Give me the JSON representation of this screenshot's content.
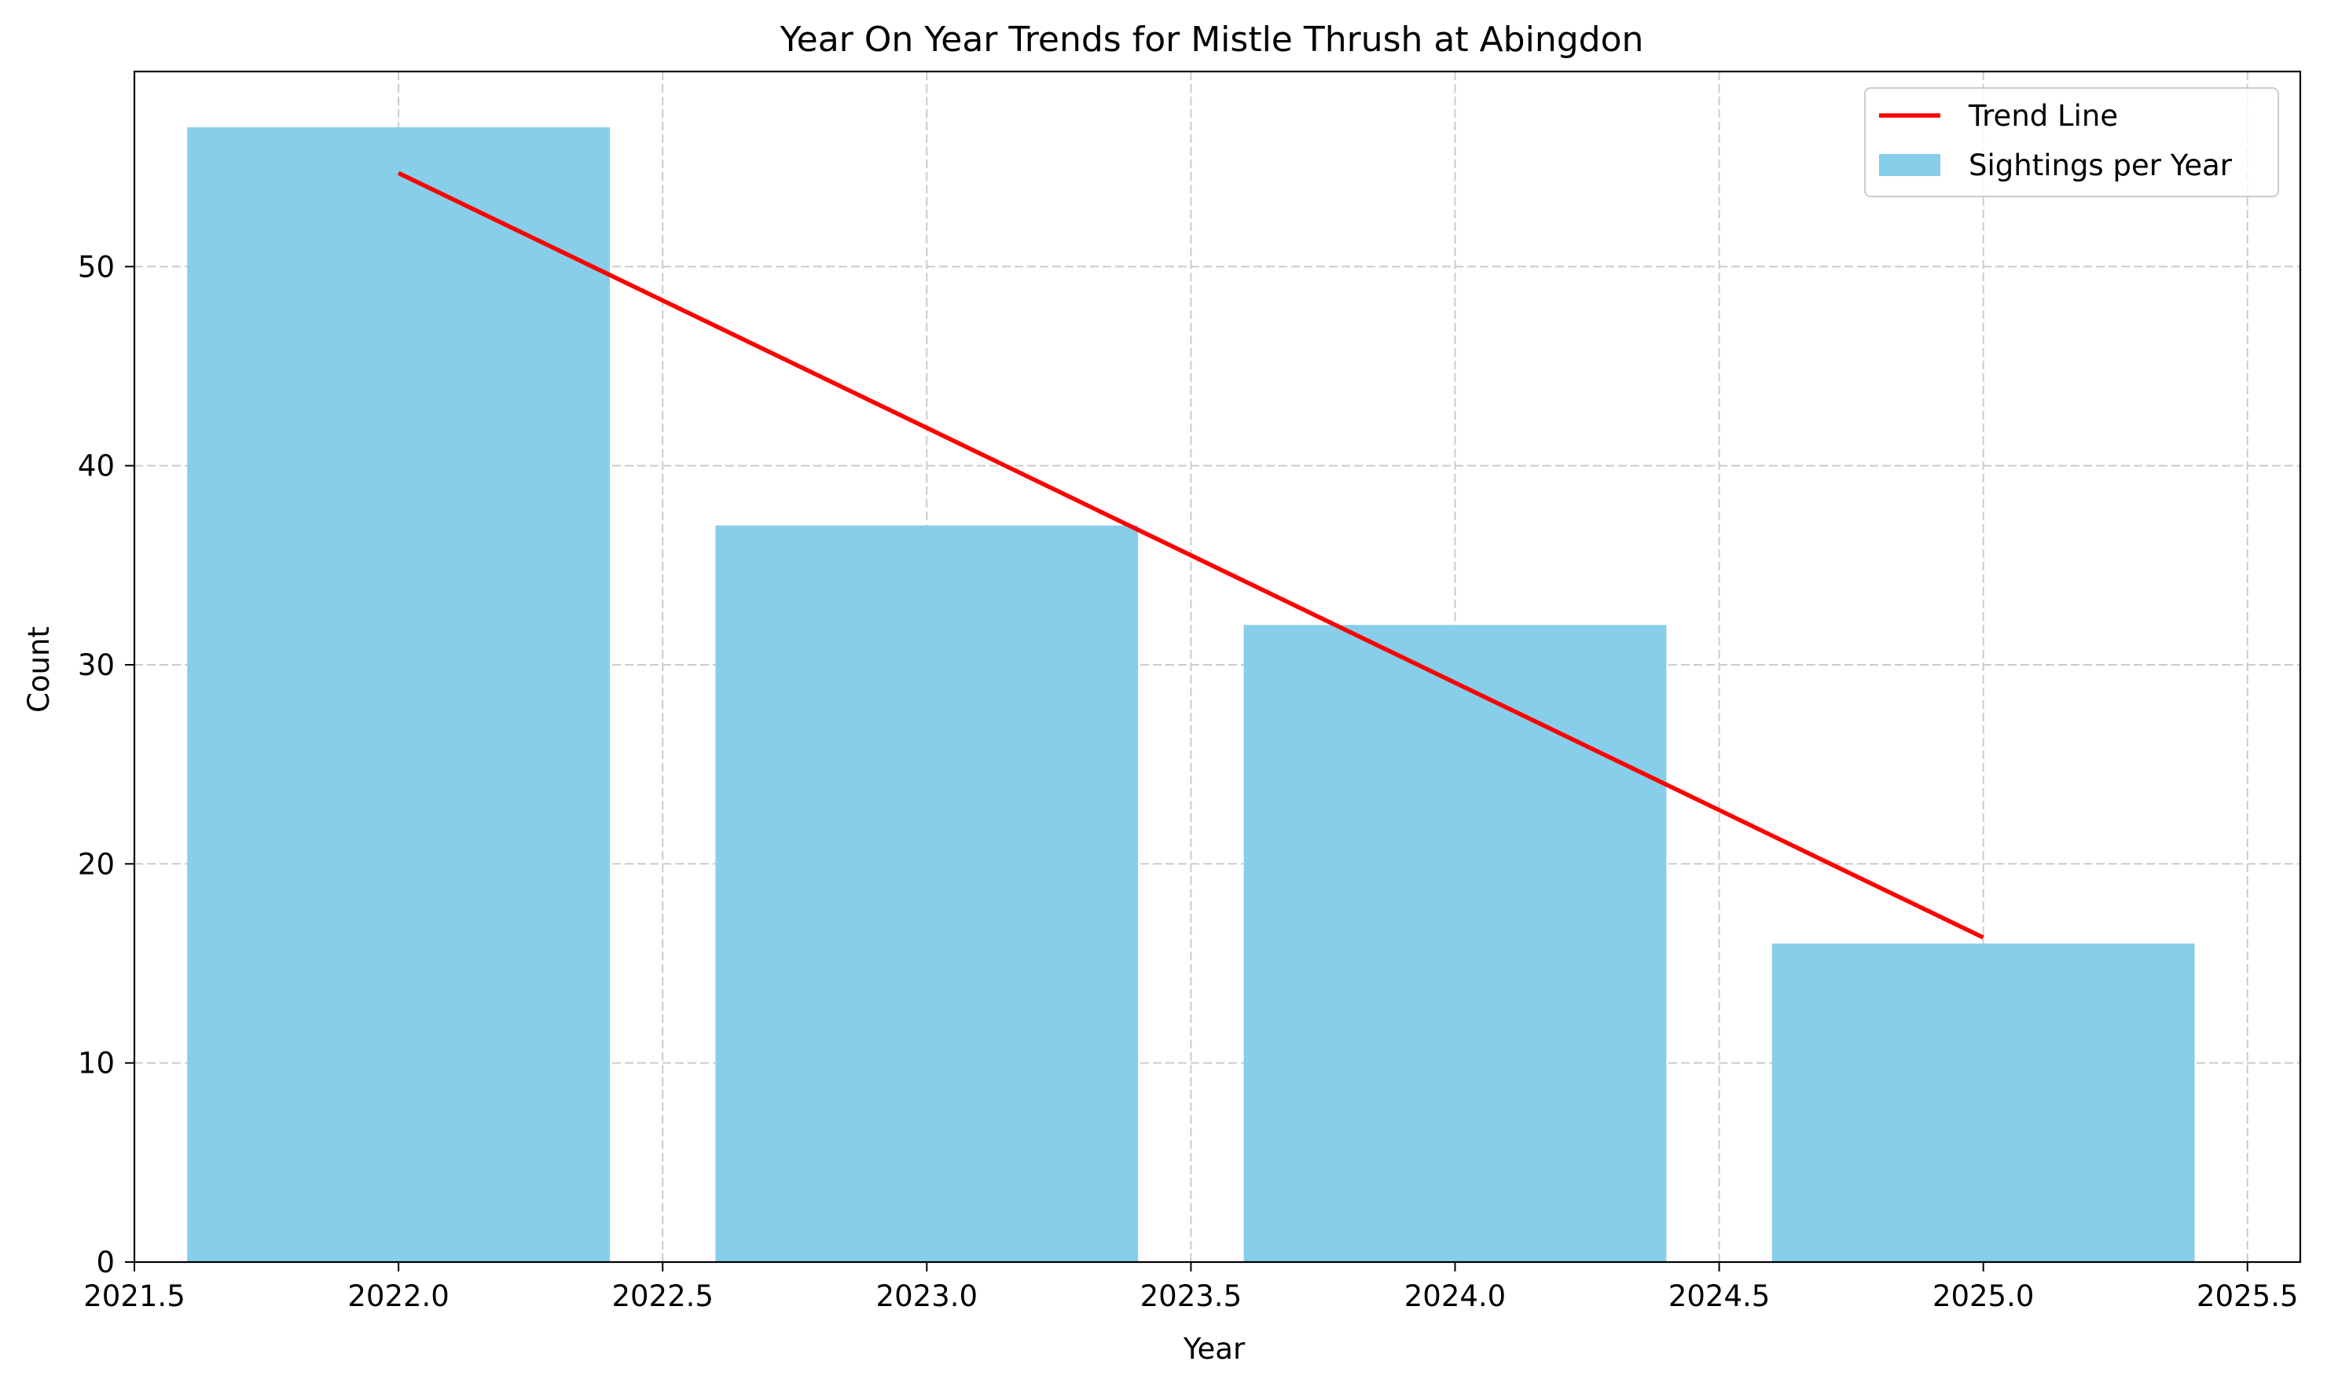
{
  "chart_data": {
    "type": "bar",
    "title": "Year On Year Trends for Mistle Thrush at Abingdon",
    "xlabel": "Year",
    "ylabel": "Count",
    "categories": [
      2022,
      2023,
      2024,
      2025
    ],
    "series": [
      {
        "name": "Sightings per Year",
        "type": "bar",
        "x": [
          2022,
          2023,
          2024,
          2025
        ],
        "values": [
          57,
          37,
          32,
          16
        ],
        "color": "#87CEEB"
      },
      {
        "name": "Trend Line",
        "type": "line",
        "x": [
          2022,
          2025
        ],
        "values": [
          54.7,
          16.3
        ],
        "color": "#FF0000"
      }
    ],
    "bar_width": 0.8,
    "xlim": [
      2021.5,
      2025.6
    ],
    "ylim": [
      0,
      59.8
    ],
    "xticks": [
      2021.5,
      2022.0,
      2022.5,
      2023.0,
      2023.5,
      2024.0,
      2024.5,
      2025.0,
      2025.5
    ],
    "xtick_labels": [
      "2021.5",
      "2022.0",
      "2022.5",
      "2023.0",
      "2023.5",
      "2024.0",
      "2024.5",
      "2025.0",
      "2025.5"
    ],
    "yticks": [
      0,
      10,
      20,
      30,
      40,
      50
    ],
    "ytick_labels": [
      "0",
      "10",
      "20",
      "30",
      "40",
      "50"
    ],
    "grid": true,
    "legend": {
      "placement": "top-right",
      "entries": [
        {
          "label": "Trend Line",
          "kind": "line",
          "color": "#FF0000"
        },
        {
          "label": "Sightings per Year",
          "kind": "patch",
          "color": "#87CEEB"
        }
      ]
    }
  }
}
